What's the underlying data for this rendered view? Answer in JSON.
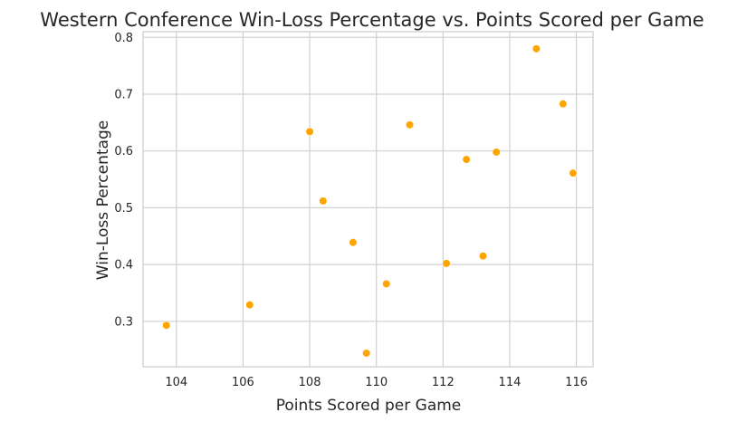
{
  "chart_data": {
    "type": "scatter",
    "title": "Western Conference Win-Loss Percentage vs. Points Scored per Game",
    "xlabel": "Points Scored per Game",
    "ylabel": "Win-Loss Percentage",
    "xlim": [
      103,
      116.5
    ],
    "ylim": [
      0.22,
      0.81
    ],
    "xticks": [
      104,
      106,
      108,
      110,
      112,
      114,
      116
    ],
    "yticks": [
      0.3,
      0.4,
      0.5,
      0.6,
      0.7,
      0.8
    ],
    "grid": true,
    "marker_color": "#ffa500",
    "points": [
      {
        "x": 103.7,
        "y": 0.293
      },
      {
        "x": 106.2,
        "y": 0.329
      },
      {
        "x": 108.0,
        "y": 0.634
      },
      {
        "x": 108.4,
        "y": 0.512
      },
      {
        "x": 109.3,
        "y": 0.439
      },
      {
        "x": 109.7,
        "y": 0.244
      },
      {
        "x": 110.3,
        "y": 0.366
      },
      {
        "x": 111.0,
        "y": 0.646
      },
      {
        "x": 112.1,
        "y": 0.402
      },
      {
        "x": 112.7,
        "y": 0.585
      },
      {
        "x": 113.2,
        "y": 0.415
      },
      {
        "x": 113.6,
        "y": 0.598
      },
      {
        "x": 114.8,
        "y": 0.78
      },
      {
        "x": 115.6,
        "y": 0.683
      },
      {
        "x": 115.9,
        "y": 0.561
      }
    ]
  }
}
